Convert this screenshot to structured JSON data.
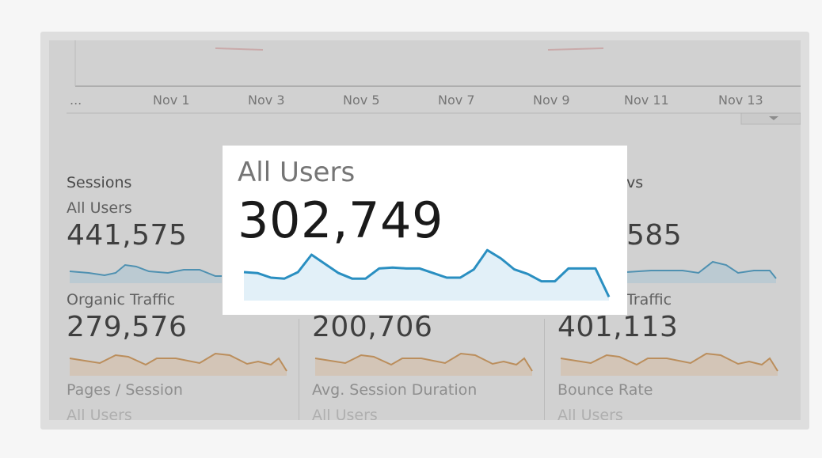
{
  "colors": {
    "blue": "#2a8fc1",
    "blue_fill": "#cfe6f3",
    "orange": "#cf8a3e",
    "orange_fill": "#f4dfc9"
  },
  "timeline": {
    "ticks": [
      "...",
      "Nov 1",
      "Nov 3",
      "Nov 5",
      "Nov 7",
      "Nov 9",
      "Nov 11",
      "Nov 13"
    ]
  },
  "metrics": {
    "sessions": {
      "title": "Sessions",
      "segment": "All Users",
      "value": "441,575"
    },
    "pageviews": {
      "title_partial": "vs",
      "value_partial": "585"
    },
    "organic": {
      "segment": "Organic Traffic",
      "value": "279,576"
    },
    "col2": {
      "value": "200,706"
    },
    "col3": {
      "segment_partial": "Traffic",
      "value": "401,113"
    },
    "pages_session": {
      "title": "Pages / Session",
      "segment": "All Users"
    },
    "avg_duration": {
      "title": "Avg. Session Duration",
      "segment": "All Users"
    },
    "bounce": {
      "title": "Bounce Rate",
      "segment": "All Users"
    }
  },
  "popup": {
    "title": "All Users",
    "value": "302,749",
    "sparkline": [
      0.62,
      0.6,
      0.5,
      0.48,
      0.62,
      1.0,
      0.8,
      0.6,
      0.48,
      0.48,
      0.7,
      0.72,
      0.7,
      0.7,
      0.6,
      0.5,
      0.5,
      0.68,
      1.1,
      0.92,
      0.68,
      0.58,
      0.42,
      0.42,
      0.7,
      0.7,
      0.7,
      0.08
    ]
  }
}
